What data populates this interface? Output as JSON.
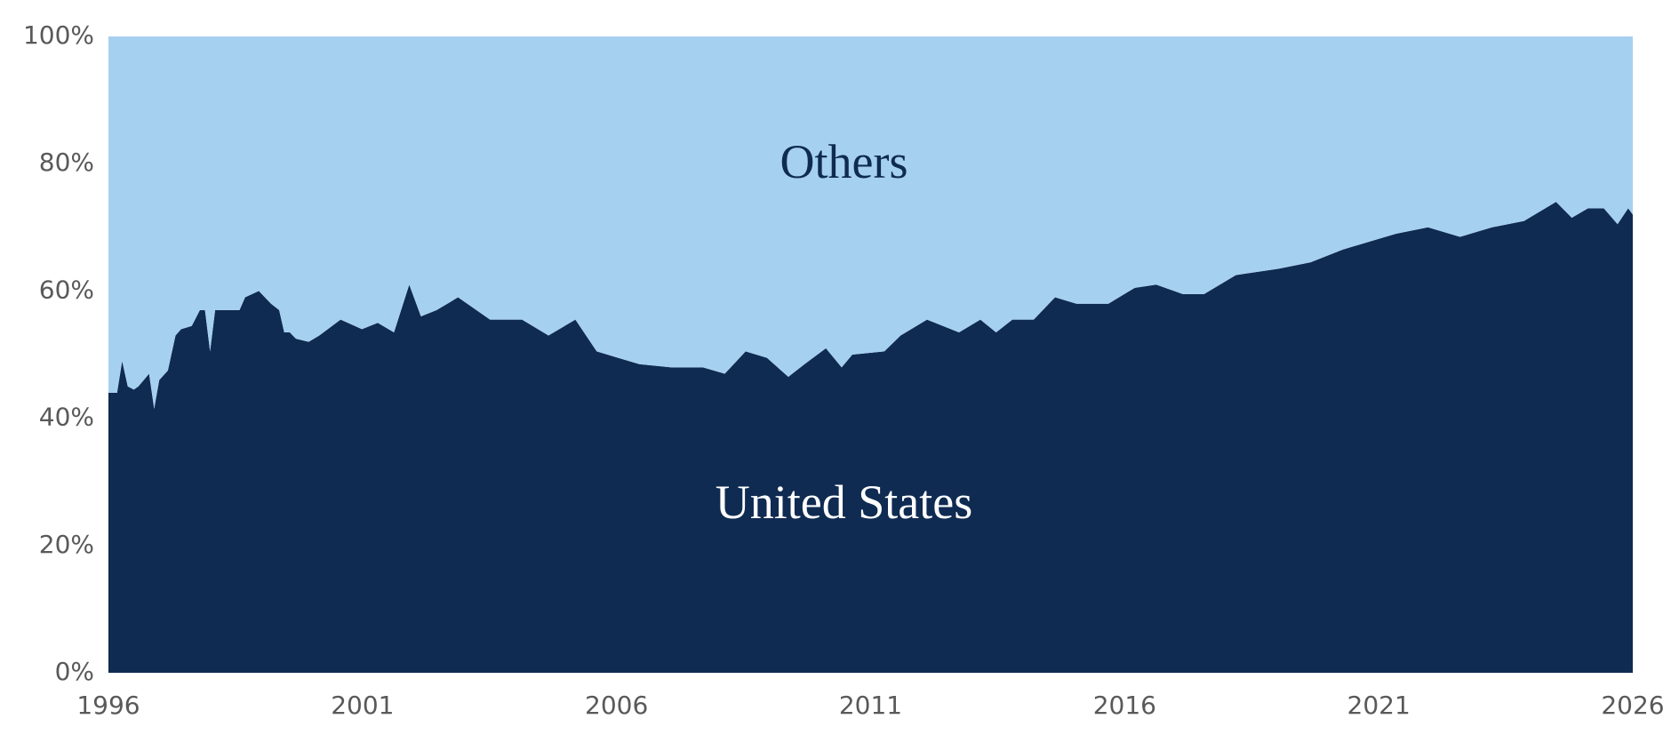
{
  "chart_data": {
    "type": "area",
    "stacked": true,
    "x": [
      1996.0,
      1996.17,
      1996.27,
      1996.38,
      1996.5,
      1996.59,
      1996.8,
      1996.9,
      1997.0,
      1997.17,
      1997.32,
      1997.43,
      1997.64,
      1997.8,
      1997.9,
      1998.0,
      1998.1,
      1998.58,
      1998.69,
      1998.96,
      1999.2,
      1999.36,
      1999.46,
      1999.57,
      1999.69,
      1999.94,
      2000.15,
      2000.57,
      2000.99,
      2001.3,
      2001.62,
      2001.92,
      2002.15,
      2002.46,
      2002.88,
      2003.51,
      2004.14,
      2004.66,
      2005.19,
      2005.61,
      2006.03,
      2006.45,
      2007.08,
      2007.7,
      2008.13,
      2008.54,
      2008.96,
      2009.38,
      2009.7,
      2010.12,
      2010.43,
      2010.64,
      2011.27,
      2011.59,
      2012.11,
      2012.74,
      2013.16,
      2013.47,
      2013.79,
      2014.21,
      2014.63,
      2015.05,
      2015.68,
      2016.2,
      2016.62,
      2017.15,
      2017.56,
      2018.19,
      2019.03,
      2019.66,
      2020.29,
      2020.92,
      2021.34,
      2021.97,
      2022.6,
      2023.23,
      2023.86,
      2024.49,
      2024.8,
      2025.12,
      2025.43,
      2025.7,
      2025.91,
      2026.0
    ],
    "series": [
      {
        "name": "United States",
        "color": "#0f2b52",
        "label_color": "#ffffff",
        "values": [
          44,
          44,
          49,
          45,
          44.5,
          45,
          47,
          41.5,
          46,
          47.5,
          53,
          54,
          54.5,
          57,
          57,
          50.5,
          57,
          57,
          59,
          60,
          58,
          57,
          53.5,
          53.5,
          52.5,
          52,
          53,
          55.5,
          54,
          55,
          53.5,
          61,
          56,
          57,
          59,
          55.5,
          55.5,
          53,
          55.5,
          50.5,
          49.5,
          48.5,
          48,
          48,
          47,
          50.5,
          49.5,
          46.5,
          48.5,
          51,
          48,
          50,
          50.5,
          53,
          55.5,
          53.5,
          55.5,
          53.5,
          55.5,
          55.5,
          59,
          58,
          58,
          60.5,
          61,
          59.5,
          59.5,
          62.5,
          63.5,
          64.5,
          66.5,
          68,
          69,
          70,
          68.5,
          70,
          71,
          74,
          71.5,
          73,
          73,
          70.5,
          73,
          72
        ]
      },
      {
        "name": "Others",
        "color": "#a6d0ef",
        "label_color": "#0f2b52",
        "values": [
          56,
          56,
          51,
          55,
          55.5,
          55,
          53,
          58.5,
          54,
          52.5,
          47,
          46,
          45.5,
          43,
          43,
          49.5,
          43,
          43,
          41,
          40,
          42,
          43,
          46.5,
          46.5,
          47.5,
          48,
          47,
          44.5,
          46,
          45,
          46.5,
          39,
          44,
          43,
          41,
          44.5,
          44.5,
          47,
          44.5,
          49.5,
          50.5,
          51.5,
          52,
          52,
          53,
          49.5,
          50.5,
          53.5,
          51.5,
          49,
          52,
          50,
          49.5,
          47,
          44.5,
          46.5,
          44.5,
          46.5,
          44.5,
          44.5,
          41,
          42,
          42,
          39.5,
          39,
          40.5,
          40.5,
          37.5,
          36.5,
          35.5,
          33.5,
          32,
          31,
          30,
          31.5,
          30,
          29,
          26,
          28.5,
          27,
          27,
          29.5,
          27,
          28
        ]
      }
    ],
    "xlim": [
      1996,
      2026
    ],
    "xticks": [
      1996,
      2001,
      2006,
      2011,
      2016,
      2021,
      2026
    ],
    "ylim": [
      0,
      100
    ],
    "yticks": [
      {
        "value": 0,
        "label": "0%"
      },
      {
        "value": 20,
        "label": "20%"
      },
      {
        "value": 40,
        "label": "40%"
      },
      {
        "value": 60,
        "label": "60%"
      },
      {
        "value": 80,
        "label": "80%"
      },
      {
        "value": 100,
        "label": "100%"
      }
    ]
  }
}
